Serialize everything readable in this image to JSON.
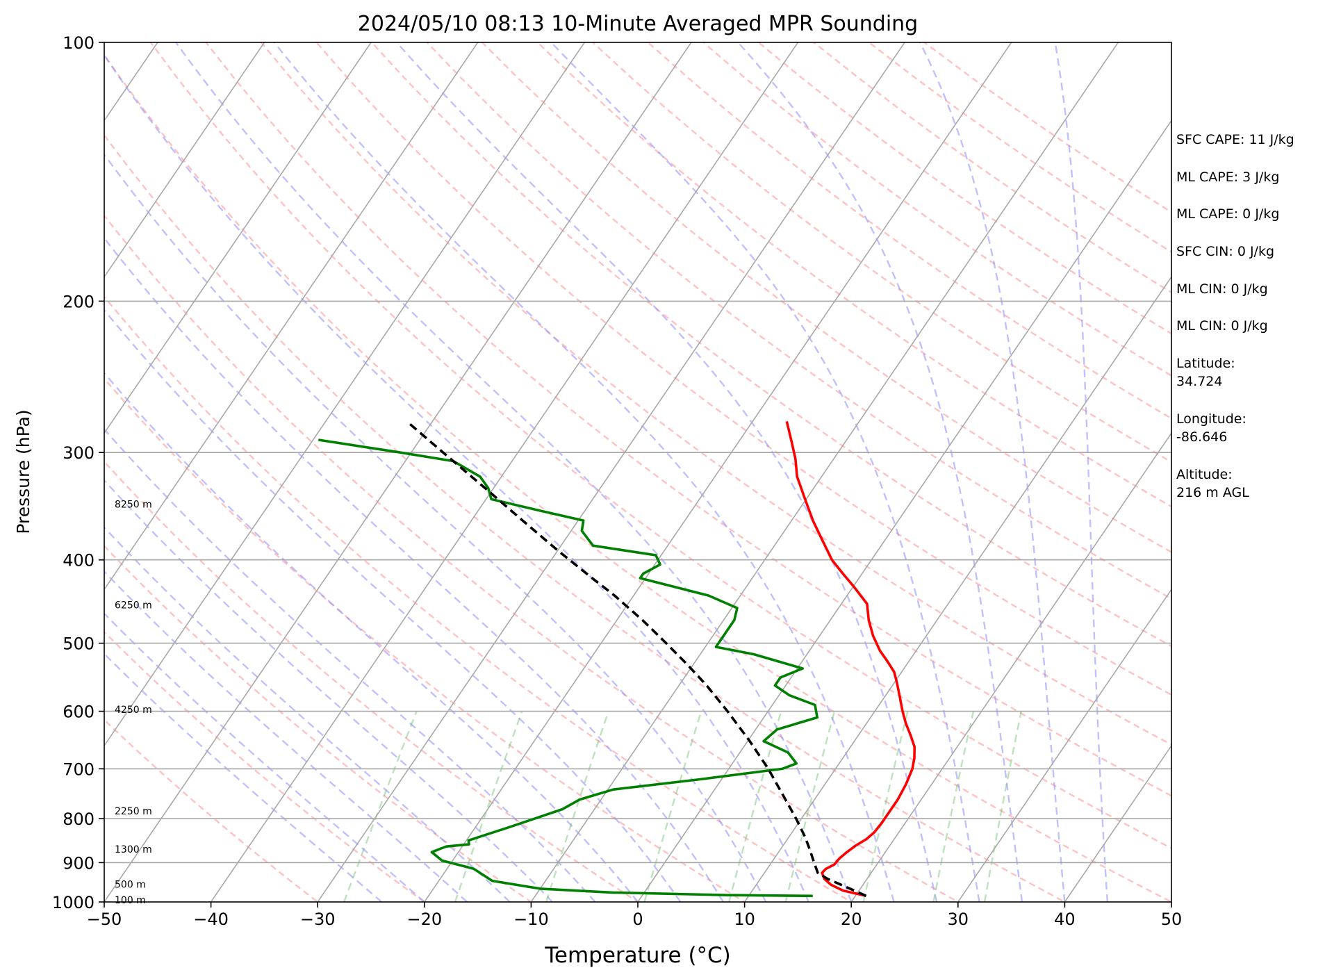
{
  "chart_data": {
    "type": "line",
    "title": "2024/05/10 08:13 10-Minute Averaged MPR Sounding",
    "xlabel": "Temperature (°C)",
    "ylabel": "Pressure (hPa)",
    "xlim": [
      -50,
      50
    ],
    "ylim": [
      1000,
      100
    ],
    "yscale": "log",
    "skew": true,
    "grid": true,
    "x_ticks": [
      "−50",
      "−40",
      "−30",
      "−20",
      "−10",
      "0",
      "10",
      "20",
      "30",
      "40",
      "50"
    ],
    "y_ticks": [
      "100",
      "200",
      "300",
      "400",
      "500",
      "600",
      "700",
      "800",
      "900",
      "1000"
    ],
    "height_labels": [
      {
        "text": "8250 m",
        "pressure": 345
      },
      {
        "text": "6250 m",
        "pressure": 452
      },
      {
        "text": "4250 m",
        "pressure": 598
      },
      {
        "text": "2250 m",
        "pressure": 785
      },
      {
        "text": "1300 m",
        "pressure": 870
      },
      {
        "text": "500 m",
        "pressure": 955
      },
      {
        "text": "100 m",
        "pressure": 996
      }
    ],
    "series": [
      {
        "color": "#ff0000",
        "points": [
          [
            984,
            21.0
          ],
          [
            970,
            18.5
          ],
          [
            955,
            17.0
          ],
          [
            940,
            16.0
          ],
          [
            925,
            15.4
          ],
          [
            915,
            15.5
          ],
          [
            905,
            16.0
          ],
          [
            890,
            16.1
          ],
          [
            875,
            16.4
          ],
          [
            860,
            16.8
          ],
          [
            845,
            17.4
          ],
          [
            830,
            17.7
          ],
          [
            810,
            17.8
          ],
          [
            790,
            17.8
          ],
          [
            760,
            17.8
          ],
          [
            730,
            17.6
          ],
          [
            700,
            17.2
          ],
          [
            680,
            16.7
          ],
          [
            660,
            16.0
          ],
          [
            640,
            14.9
          ],
          [
            620,
            13.7
          ],
          [
            600,
            12.6
          ],
          [
            575,
            11.3
          ],
          [
            555,
            10.2
          ],
          [
            540,
            9.3
          ],
          [
            525,
            8.0
          ],
          [
            510,
            6.6
          ],
          [
            490,
            5.0
          ],
          [
            470,
            3.6
          ],
          [
            450,
            2.4
          ],
          [
            430,
            0.1
          ],
          [
            415,
            -1.8
          ],
          [
            400,
            -3.7
          ],
          [
            380,
            -5.8
          ],
          [
            360,
            -8.0
          ],
          [
            340,
            -10.1
          ],
          [
            320,
            -12.3
          ],
          [
            305,
            -13.6
          ],
          [
            290,
            -15.2
          ],
          [
            276,
            -16.8
          ]
        ]
      },
      {
        "color": "#008000",
        "points": [
          [
            984,
            16.0
          ],
          [
            982,
            8.0
          ],
          [
            975,
            -3.0
          ],
          [
            965,
            -10.0
          ],
          [
            945,
            -15.0
          ],
          [
            915,
            -17.5
          ],
          [
            895,
            -21.0
          ],
          [
            875,
            -22.5
          ],
          [
            862,
            -21.5
          ],
          [
            857,
            -19.5
          ],
          [
            848,
            -19.8
          ],
          [
            835,
            -18.5
          ],
          [
            820,
            -17.0
          ],
          [
            800,
            -15.0
          ],
          [
            780,
            -13.0
          ],
          [
            760,
            -12.0
          ],
          [
            740,
            -9.5
          ],
          [
            720,
            -2.0
          ],
          [
            700,
            5.0
          ],
          [
            690,
            6.0
          ],
          [
            670,
            4.5
          ],
          [
            650,
            1.5
          ],
          [
            630,
            2.0
          ],
          [
            610,
            5.0
          ],
          [
            590,
            4.0
          ],
          [
            575,
            1.0
          ],
          [
            560,
            -1.0
          ],
          [
            548,
            -1.0
          ],
          [
            535,
            0.5
          ],
          [
            515,
            -5.0
          ],
          [
            505,
            -9.0
          ],
          [
            490,
            -9.0
          ],
          [
            470,
            -9.0
          ],
          [
            455,
            -9.5
          ],
          [
            440,
            -13.0
          ],
          [
            420,
            -20.5
          ],
          [
            415,
            -20.5
          ],
          [
            405,
            -19.5
          ],
          [
            395,
            -20.5
          ],
          [
            385,
            -27.0
          ],
          [
            370,
            -29.0
          ],
          [
            360,
            -29.5
          ],
          [
            350,
            -34.5
          ],
          [
            340,
            -39.5
          ],
          [
            330,
            -40.5
          ],
          [
            320,
            -42.0
          ],
          [
            307,
            -45.5
          ],
          [
            300,
            -51.0
          ],
          [
            290,
            -59.5
          ]
        ]
      },
      {
        "color": "#000000",
        "dashed": true,
        "points": [
          [
            984,
            21.0
          ],
          [
            960,
            18.5
          ],
          [
            940,
            16.3
          ],
          [
            925,
            15.0
          ],
          [
            900,
            14.0
          ],
          [
            870,
            12.8
          ],
          [
            840,
            11.5
          ],
          [
            800,
            9.5
          ],
          [
            750,
            6.7
          ],
          [
            700,
            3.7
          ],
          [
            650,
            0.2
          ],
          [
            600,
            -3.8
          ],
          [
            560,
            -7.4
          ],
          [
            530,
            -10.5
          ],
          [
            500,
            -13.9
          ],
          [
            470,
            -17.6
          ],
          [
            440,
            -21.8
          ],
          [
            420,
            -25.0
          ],
          [
            390,
            -30.0
          ],
          [
            360,
            -35.2
          ],
          [
            330,
            -40.8
          ],
          [
            300,
            -47.0
          ],
          [
            276,
            -52.4
          ]
        ]
      }
    ],
    "annotations": [
      "SFC CAPE: 11 J/kg",
      "ML CAPE: 3 J/kg",
      "ML CAPE: 0 J/kg",
      "SFC CIN: 0 J/kg",
      "ML CIN: 0 J/kg",
      "ML CIN: 0 J/kg",
      "Latitude:\n34.724",
      "Longitude:\n-86.646",
      "Altitude:\n216 m AGL"
    ]
  }
}
